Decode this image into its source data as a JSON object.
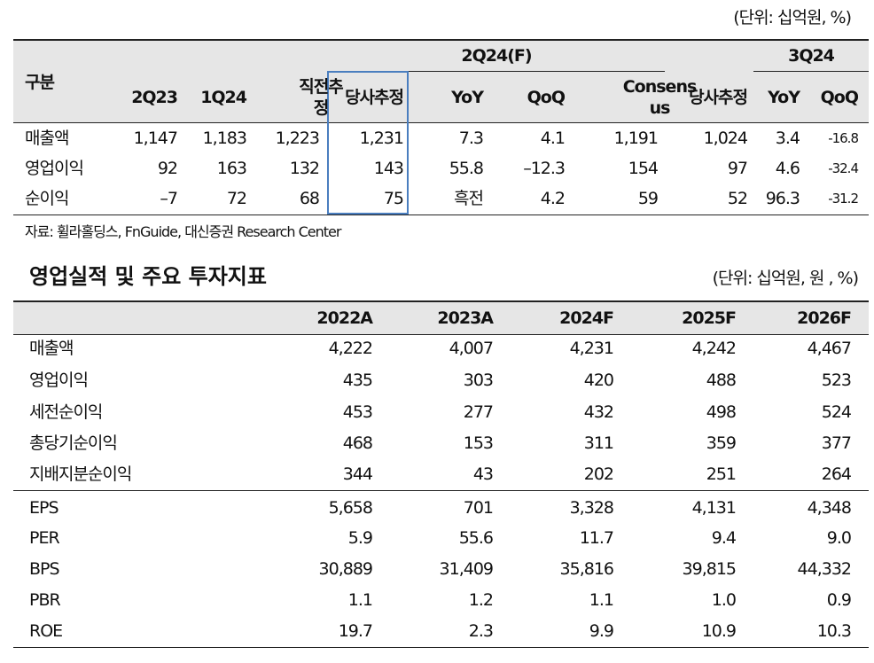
{
  "table1": {
    "unit": "(단위: 십억원, %)",
    "header": {
      "label": "구분",
      "groups": [
        "2Q24(F)",
        "3Q24"
      ],
      "columns": [
        "2Q23",
        "1Q24",
        "직전추정",
        "당사추정",
        "YoY",
        "QoQ",
        "Consensus",
        "당사추정",
        "YoY",
        "QoQ"
      ]
    },
    "rows": [
      [
        "매출액",
        "1,147",
        "1,183",
        "1,223",
        "1,231",
        "7.3",
        "4.1",
        "1,191",
        "1,024",
        "3.4",
        "-16.8"
      ],
      [
        "영업이익",
        "92",
        "163",
        "132",
        "143",
        "55.8",
        "–12.3",
        "154",
        "97",
        "4.6",
        "-32.4"
      ],
      [
        "순이익",
        "–7",
        "72",
        "68",
        "75",
        "흑전",
        "4.2",
        "59",
        "52",
        "96.3",
        "-31.2"
      ]
    ]
  },
  "source": "자료: 휠라홀딩스, FnGuide, 대신증권 Research Center",
  "table2": {
    "title": "영업실적 및 주요 투자지표",
    "unit": "(단위: 십억원, 원 , %)",
    "columns": [
      "2022A",
      "2023A",
      "2024F",
      "2025F",
      "2026F"
    ],
    "rows": [
      [
        "매출액",
        "4,222",
        "4,007",
        "4,231",
        "4,242",
        "4,467"
      ],
      [
        "영업이익",
        "435",
        "303",
        "420",
        "488",
        "523"
      ],
      [
        "세전순이익",
        "453",
        "277",
        "432",
        "498",
        "524"
      ],
      [
        "총당기순이익",
        "468",
        "153",
        "311",
        "359",
        "377"
      ],
      [
        "지배지분순이익",
        "344",
        "43",
        "202",
        "251",
        "264"
      ],
      [
        "EPS",
        "5,658",
        "701",
        "3,328",
        "4,131",
        "4,348"
      ],
      [
        "PER",
        "5.9",
        "55.6",
        "11.7",
        "9.4",
        "9.0"
      ],
      [
        "BPS",
        "30,889",
        "31,409",
        "35,816",
        "39,815",
        "44,332"
      ],
      [
        "PBR",
        "1.1",
        "1.2",
        "1.1",
        "1.0",
        "0.9"
      ],
      [
        "ROE",
        "19.7",
        "2.3",
        "9.9",
        "10.9",
        "10.3"
      ]
    ]
  }
}
